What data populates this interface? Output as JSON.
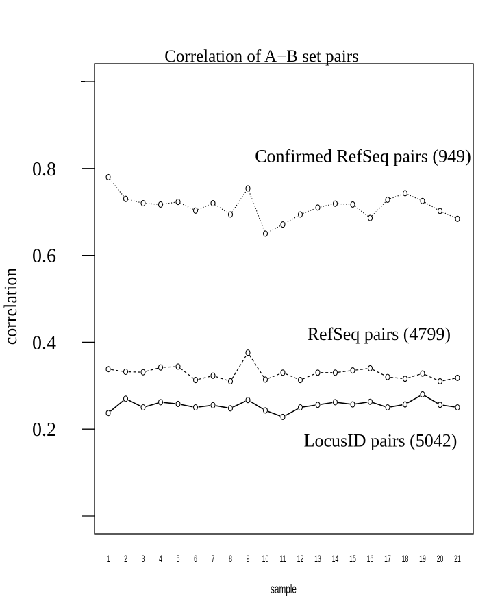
{
  "chart_data": {
    "type": "line",
    "title": "Correlation  of A−B set pairs",
    "xlabel": "sample",
    "ylabel": "correlation",
    "x": [
      1,
      2,
      3,
      4,
      5,
      6,
      7,
      8,
      9,
      10,
      11,
      12,
      13,
      14,
      15,
      16,
      17,
      18,
      19,
      20,
      21
    ],
    "x_tick_labels": [
      "1",
      "2",
      "3",
      "4",
      "5",
      "6",
      "7",
      "8",
      "9",
      "10",
      "11",
      "12",
      "13",
      "14",
      "15",
      "16",
      "17",
      "18",
      "19",
      "20",
      "21"
    ],
    "xlim": [
      0.3,
      21.7
    ],
    "ylim": [
      0.0,
      1.0
    ],
    "y_ticks": [
      0.0,
      0.2,
      0.4,
      0.6,
      0.8,
      1.0
    ],
    "y_tick_labels": [
      "",
      "0.2",
      "0.4",
      "0.6",
      "0.8",
      ""
    ],
    "grid": false,
    "legend": "none",
    "series": [
      {
        "line_style": "dotted",
        "values": [
          0.78,
          0.73,
          0.72,
          0.717,
          0.723,
          0.703,
          0.72,
          0.694,
          0.754,
          0.65,
          0.671,
          0.694,
          0.71,
          0.719,
          0.717,
          0.686,
          0.728,
          0.743,
          0.725,
          0.702,
          0.684
        ]
      },
      {
        "line_style": "dashed",
        "values": [
          0.338,
          0.332,
          0.331,
          0.342,
          0.344,
          0.313,
          0.323,
          0.31,
          0.376,
          0.314,
          0.33,
          0.313,
          0.33,
          0.33,
          0.335,
          0.34,
          0.32,
          0.316,
          0.328,
          0.31,
          0.318
        ]
      },
      {
        "line_style": "solid",
        "values": [
          0.237,
          0.27,
          0.25,
          0.262,
          0.258,
          0.25,
          0.255,
          0.248,
          0.267,
          0.243,
          0.228,
          0.25,
          0.256,
          0.262,
          0.257,
          0.263,
          0.25,
          0.257,
          0.28,
          0.256,
          0.25
        ]
      }
    ],
    "annotations": [
      {
        "text": "Confirmed RefSeq pairs (949)",
        "x": 9.4,
        "y": 0.815
      },
      {
        "text": "RefSeq pairs (4799)",
        "x": 12.4,
        "y": 0.405
      },
      {
        "text": "LocusID pairs (5042)",
        "x": 12.2,
        "y": 0.16
      }
    ]
  }
}
